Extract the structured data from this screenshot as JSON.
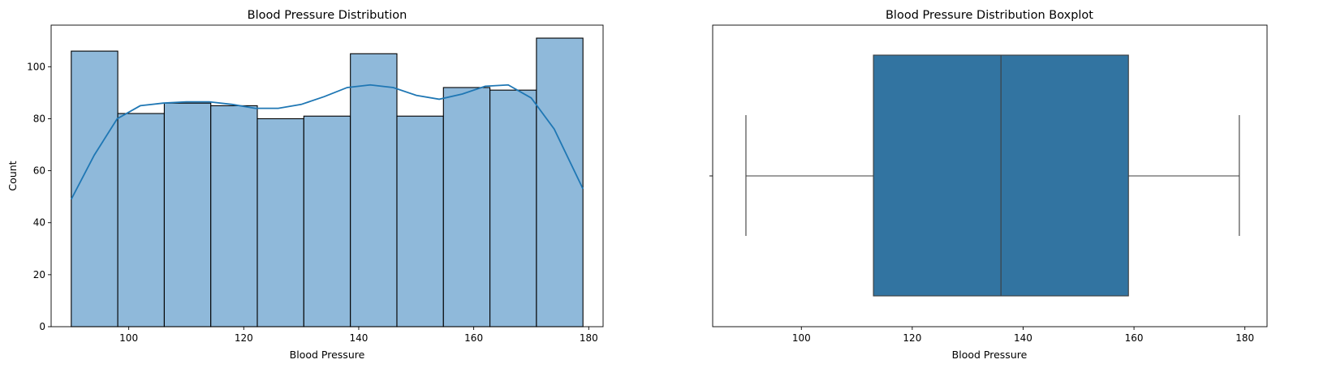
{
  "chart_data": [
    {
      "type": "histogram",
      "title": "Blood Pressure Distribution",
      "xlabel": "Blood Pressure",
      "ylabel": "Count",
      "bin_edges": [
        90,
        98.09,
        106.18,
        114.27,
        122.36,
        130.45,
        138.55,
        146.64,
        154.73,
        162.82,
        170.91,
        179
      ],
      "counts": [
        106,
        82,
        86,
        85,
        80,
        81,
        105,
        81,
        92,
        91,
        111
      ],
      "kde": {
        "x": [
          90,
          94,
          98,
          102,
          106,
          110,
          114,
          118,
          122,
          126,
          130,
          134,
          138,
          142,
          146,
          150,
          154,
          158,
          162,
          166,
          170,
          174,
          179
        ],
        "y": [
          49,
          66,
          80,
          85,
          86,
          86.5,
          86.5,
          85.5,
          84,
          84,
          85.5,
          88.5,
          92,
          93,
          92,
          89,
          87.5,
          89.5,
          92.5,
          93,
          88,
          76,
          53
        ]
      },
      "xlim": [
        86.5,
        182.5
      ],
      "ylim": [
        0,
        116
      ],
      "xticks": [
        100,
        120,
        140,
        160,
        180
      ],
      "yticks": [
        0,
        20,
        40,
        60,
        80,
        100
      ],
      "bar_color": "#8fb9da",
      "edge_color": "#000000",
      "line_color": "#1f77b4",
      "grid": false
    },
    {
      "type": "boxplot",
      "title": "Blood Pressure Distribution Boxplot",
      "xlabel": "Blood Pressure",
      "ylabel": "",
      "orientation": "horizontal",
      "whisker_low": 90,
      "q1": 113,
      "median": 136,
      "q3": 159,
      "whisker_high": 179,
      "xlim": [
        84,
        184
      ],
      "xticks": [
        100,
        120,
        140,
        160,
        180
      ],
      "box_color": "#3274a1",
      "line_color": "#3d3d3d",
      "grid": false
    }
  ]
}
